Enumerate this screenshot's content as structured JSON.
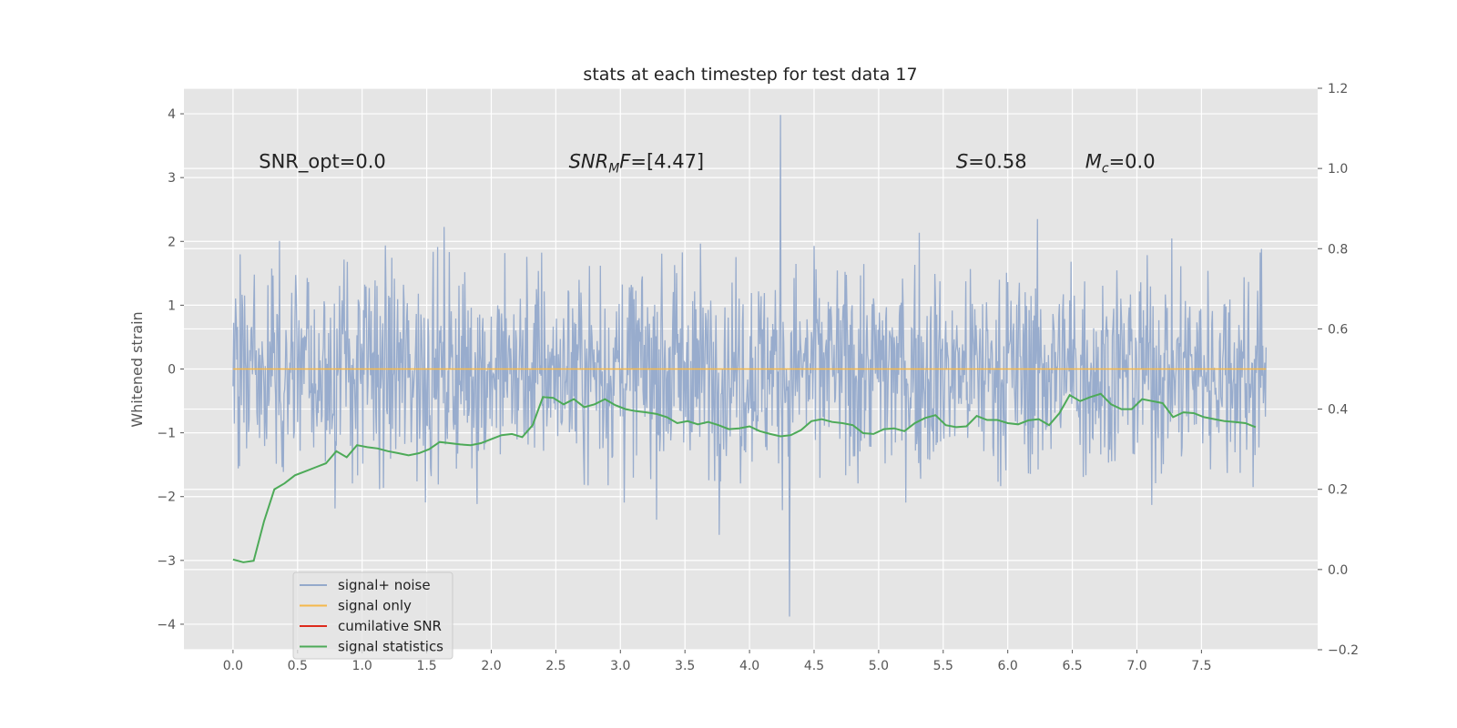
{
  "chart_data": {
    "type": "line",
    "title": "stats at each timestep for test data 17",
    "ylabel": "Whitened strain",
    "xlim": [
      -0.38,
      8.4
    ],
    "ylim": [
      -4.4,
      4.4
    ],
    "ylim_right": [
      -0.2,
      1.2
    ],
    "x_ticks": [
      0.0,
      0.5,
      1.0,
      1.5,
      2.0,
      2.5,
      3.0,
      3.5,
      4.0,
      4.5,
      5.0,
      5.5,
      6.0,
      6.5,
      7.0,
      7.5
    ],
    "y_ticks": [
      -4,
      -3,
      -2,
      -1,
      0,
      1,
      2,
      3,
      4
    ],
    "y_ticks_right": [
      -0.2,
      0.0,
      0.2,
      0.4,
      0.6,
      0.8,
      1.0,
      1.2
    ],
    "x_tick_labels": [
      "0.0",
      "0.5",
      "1.0",
      "1.5",
      "2.0",
      "2.5",
      "3.0",
      "3.5",
      "4.0",
      "4.5",
      "5.0",
      "5.5",
      "6.0",
      "6.5",
      "7.0",
      "7.5"
    ],
    "y_tick_labels": [
      "−4",
      "−3",
      "−2",
      "−1",
      "0",
      "1",
      "2",
      "3",
      "4"
    ],
    "y_tick_labels_right": [
      "−0.2",
      "0.0",
      "0.2",
      "0.4",
      "0.6",
      "0.8",
      "1.0",
      "1.2"
    ],
    "grid": true,
    "legend_position": "lower-left",
    "annotations": [
      {
        "text": "SNR_opt=0.0",
        "x": 0.2,
        "y": 3.15
      },
      {
        "text": "SNR_MF=[4.47]",
        "x": 2.6,
        "y": 3.15
      },
      {
        "text": "S=0.58",
        "x": 5.6,
        "y": 3.15
      },
      {
        "text": "M_c=0.0",
        "x": 6.6,
        "y": 3.15
      }
    ],
    "series": [
      {
        "name": "signal+ noise",
        "color": "#94a9cb",
        "axis": "left",
        "x_range": [
          0.0,
          8.0
        ],
        "n_samples": 1600,
        "envelope": "noise, mostly within ±2, extremes 3.98 (t≈4.24) and −3.88 (t≈4.31)"
      },
      {
        "name": "signal only",
        "color": "#f5b84a",
        "axis": "left",
        "x": [
          0.0,
          8.0
        ],
        "values": [
          0.0,
          0.0
        ]
      },
      {
        "name": "cumilative SNR",
        "color": "#dd2a1c",
        "axis": "left",
        "x": [],
        "values": []
      },
      {
        "name": "signal statistics",
        "color": "#4daa58",
        "axis": "right",
        "x": [
          0.0,
          0.08,
          0.16,
          0.24,
          0.32,
          0.4,
          0.48,
          0.56,
          0.64,
          0.72,
          0.8,
          0.88,
          0.96,
          1.04,
          1.12,
          1.2,
          1.28,
          1.36,
          1.44,
          1.52,
          1.6,
          1.68,
          1.76,
          1.84,
          1.92,
          2.0,
          2.08,
          2.16,
          2.24,
          2.32,
          2.4,
          2.48,
          2.56,
          2.64,
          2.72,
          2.8,
          2.88,
          2.96,
          3.04,
          3.12,
          3.2,
          3.28,
          3.36,
          3.44,
          3.52,
          3.6,
          3.68,
          3.76,
          3.84,
          3.92,
          4.0,
          4.08,
          4.16,
          4.24,
          4.32,
          4.4,
          4.48,
          4.56,
          4.64,
          4.72,
          4.8,
          4.88,
          4.96,
          5.04,
          5.12,
          5.2,
          5.28,
          5.36,
          5.44,
          5.52,
          5.6,
          5.68,
          5.76,
          5.84,
          5.92,
          6.0,
          6.08,
          6.16,
          6.24,
          6.32,
          6.4,
          6.48,
          6.56,
          6.64,
          6.72,
          6.8,
          6.88,
          6.96,
          7.04,
          7.12,
          7.2,
          7.28,
          7.36,
          7.44,
          7.52,
          7.6,
          7.68,
          7.76,
          7.84,
          7.92
        ],
        "values": [
          0.025,
          0.018,
          0.022,
          0.12,
          0.2,
          0.215,
          0.235,
          0.245,
          0.255,
          0.265,
          0.295,
          0.28,
          0.31,
          0.305,
          0.302,
          0.295,
          0.29,
          0.285,
          0.29,
          0.3,
          0.318,
          0.315,
          0.312,
          0.31,
          0.315,
          0.325,
          0.335,
          0.338,
          0.33,
          0.36,
          0.43,
          0.428,
          0.412,
          0.425,
          0.405,
          0.412,
          0.425,
          0.41,
          0.4,
          0.395,
          0.392,
          0.388,
          0.38,
          0.365,
          0.37,
          0.362,
          0.368,
          0.36,
          0.35,
          0.352,
          0.357,
          0.345,
          0.338,
          0.332,
          0.335,
          0.348,
          0.37,
          0.375,
          0.368,
          0.365,
          0.36,
          0.34,
          0.338,
          0.35,
          0.352,
          0.345,
          0.365,
          0.378,
          0.385,
          0.36,
          0.355,
          0.357,
          0.383,
          0.373,
          0.373,
          0.365,
          0.362,
          0.372,
          0.375,
          0.36,
          0.39,
          0.435,
          0.42,
          0.43,
          0.438,
          0.412,
          0.4,
          0.4,
          0.425,
          0.42,
          0.415,
          0.38,
          0.392,
          0.39,
          0.38,
          0.375,
          0.37,
          0.368,
          0.365,
          0.355
        ]
      }
    ]
  }
}
